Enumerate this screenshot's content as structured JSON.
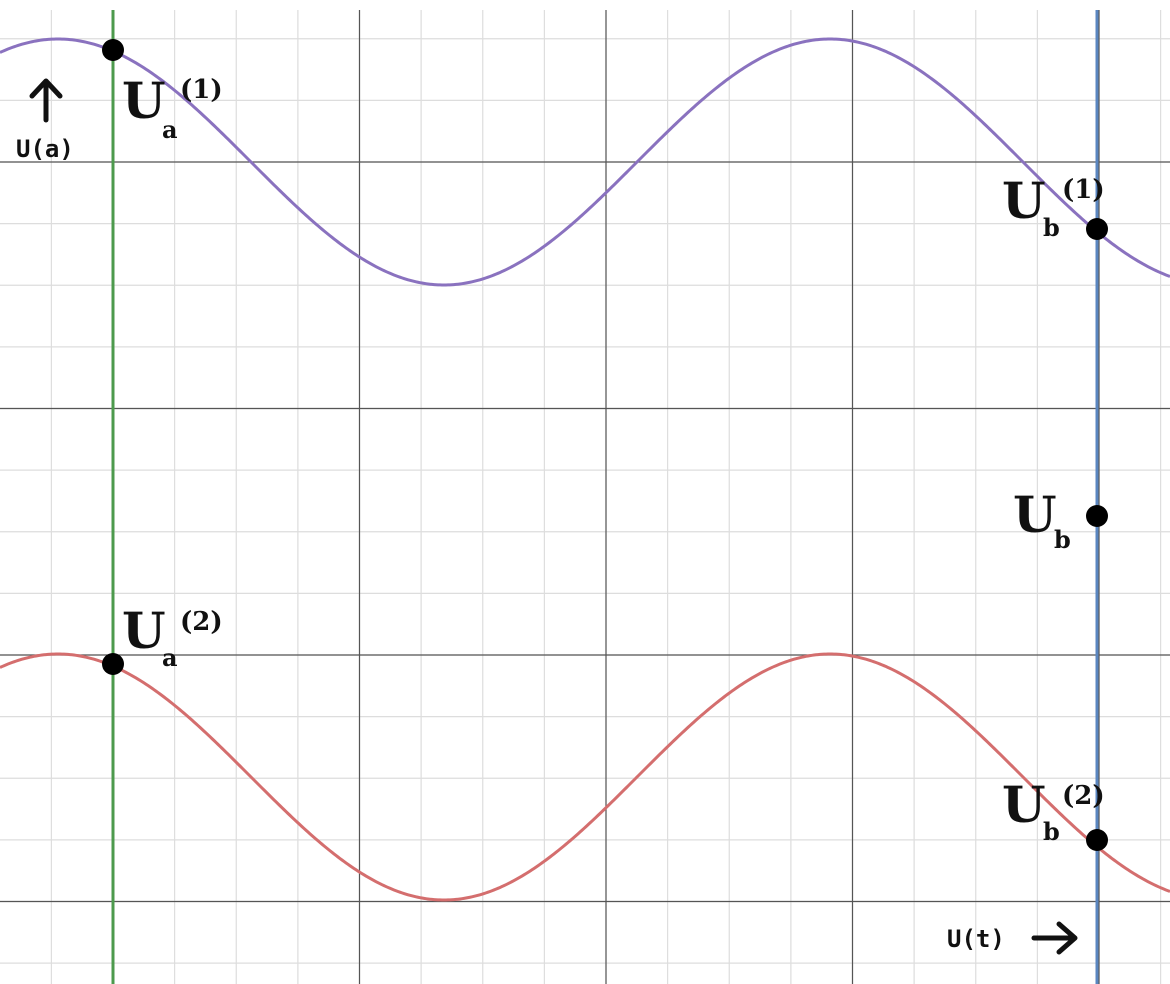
{
  "colors": {
    "curve_top": "#8a72bf",
    "curve_bottom": "#d46e6e",
    "line_a": "#4d9a4d",
    "line_b": "#5a86c0",
    "grid_minor": "#dddddd",
    "grid_major": "#555555",
    "point": "#000000"
  },
  "labels": {
    "axis_vertical": "U(a)",
    "axis_horizontal": "U(t)",
    "arrow_up_icon": "arrow-up-icon",
    "arrow_right_icon": "arrow-right-icon",
    "ua1": {
      "main": "U",
      "sub": "a",
      "sup": "(1)"
    },
    "ub1": {
      "main": "U",
      "sub": "b",
      "sup": "(1)"
    },
    "ub": {
      "main": "U",
      "sub": "b"
    },
    "ua2": {
      "main": "U",
      "sub": "a",
      "sup": "(2)"
    },
    "ub2": {
      "main": "U",
      "sub": "b",
      "sup": "(2)"
    }
  }
}
